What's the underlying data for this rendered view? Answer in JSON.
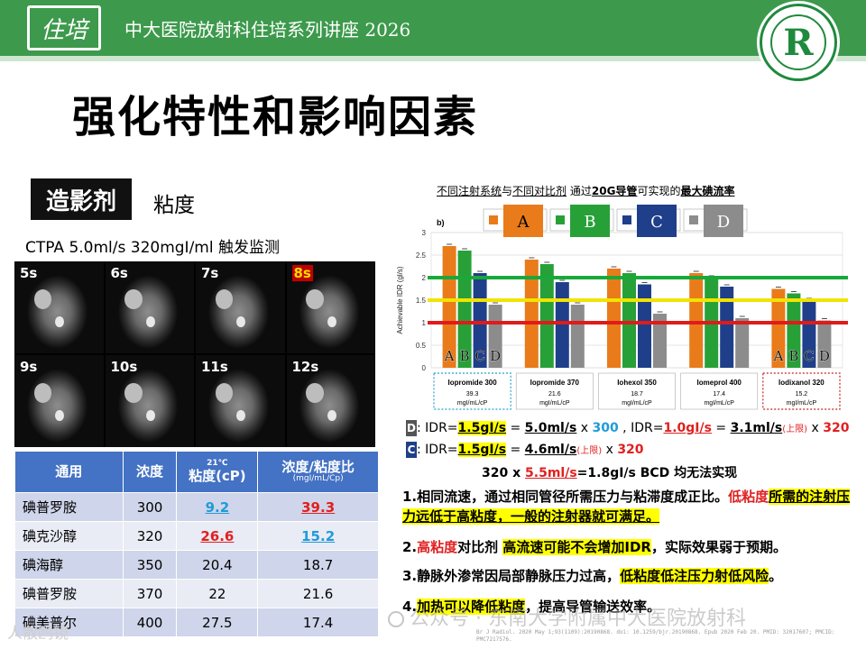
{
  "header": {
    "logo_text": "住培",
    "title": "中大医院放射科住培系列讲座  2026",
    "badge_letter": "R"
  },
  "page_title": "强化特性和影响因素",
  "section": {
    "tag": "造影剂",
    "subtitle": "粘度"
  },
  "ctpa_line": "CTPA  5.0ml/s  320mgI/ml  触发监测",
  "ct_frames": [
    "5s",
    "6s",
    "7s",
    "8s",
    "9s",
    "10s",
    "11s",
    "12s"
  ],
  "table": {
    "headers": {
      "name": "通用",
      "conc": "浓度",
      "visc_temp": "21℃",
      "visc": "粘度(cP)",
      "ratio": "浓度/粘度比",
      "ratio_unit": "(mgI/mL/Cp)"
    },
    "rows": [
      {
        "name": "碘普罗胺",
        "conc": "300",
        "visc": "9.2",
        "ratio": "39.3"
      },
      {
        "name": "碘克沙醇",
        "conc": "320",
        "visc": "26.6",
        "ratio": "15.2"
      },
      {
        "name": "碘海醇",
        "conc": "350",
        "visc": "20.4",
        "ratio": "18.7"
      },
      {
        "name": "碘普罗胺",
        "conc": "370",
        "visc": "22",
        "ratio": "21.6"
      },
      {
        "name": "碘美普尔",
        "conc": "400",
        "visc": "27.5",
        "ratio": "17.4"
      }
    ]
  },
  "chart_title": {
    "p1": "不同注射系统",
    "p2": "与",
    "p3": "不同对比剂",
    "p4": "  通过",
    "p5": "20G导管",
    "p6": "可实现的",
    "p7": "最大碘流率"
  },
  "chart_data": {
    "type": "bar",
    "panel_label": "b)",
    "ylabel": "Achievable IDR (gl/s)",
    "ylim": [
      0,
      3
    ],
    "yticks": [
      "0",
      "0.5",
      "1",
      "1.5",
      "2",
      "2.5",
      "3"
    ],
    "categories": [
      "Iopromide 300",
      "Iopromide 370",
      "Iohexol 350",
      "Iomeprol 400",
      "Iodixanol 320"
    ],
    "category_sublabels": [
      "39.3",
      "21.6",
      "18.7",
      "17.4",
      "15.2"
    ],
    "category_unit": "mgI/mL/cP",
    "series": [
      {
        "name": "A",
        "color": "#e97b1a",
        "values": [
          2.7,
          2.4,
          2.2,
          2.1,
          1.75
        ]
      },
      {
        "name": "B",
        "color": "#27a038",
        "values": [
          2.6,
          2.3,
          2.1,
          2.0,
          1.65
        ]
      },
      {
        "name": "C",
        "color": "#1f3f8a",
        "values": [
          2.1,
          1.9,
          1.85,
          1.8,
          1.5
        ]
      },
      {
        "name": "D",
        "color": "#8c8c8c",
        "values": [
          1.4,
          1.4,
          1.2,
          1.1,
          1.05
        ]
      }
    ],
    "reference_lines": [
      {
        "value": 2.0,
        "color": "#18a93a"
      },
      {
        "value": 1.5,
        "color": "#f2e300"
      },
      {
        "value": 1.0,
        "color": "#e01b1b"
      }
    ],
    "group_bar_labels": [
      "A",
      "B",
      "C",
      "D"
    ]
  },
  "formula": {
    "l1_chip": "D",
    "l1_a": ": IDR=",
    "l1_b": "1.5gI/s",
    "l1_c": " = ",
    "l1_d": "5.0ml/s",
    "l1_e": " x ",
    "l1_f": "300",
    "l1_g": " , IDR=",
    "l1_h": "1.0gI/s",
    "l1_i": " = ",
    "l1_j": "3.1ml/s",
    "l1_k": "(上限)",
    "l1_l": " x ",
    "l1_m": "320",
    "l2_chip": "C",
    "l2_a": ": IDR=",
    "l2_b": "1.5gI/s",
    "l2_c": " = ",
    "l2_d": "4.6ml/s",
    "l2_e": "(上限)",
    "l2_f": " x ",
    "l2_g": "320",
    "l3_a": "320 x  ",
    "l3_b": "5.5ml/s",
    "l3_c": "=1.8gI/s  BCD 均无法实现"
  },
  "notes": {
    "n1_a": "1.相同流速，通过相同管径所需压力与粘滞度成正比。",
    "n1_b": "低粘度",
    "n1_c": "所需的注射压力远低于高粘度，一般的注射器就可满足。",
    "n2_a": "2.",
    "n2_b": "高粘度",
    "n2_c": "对比剂 ",
    "n2_d": "高流速可能不会增加IDR",
    "n2_e": "，实际效果弱于预期。",
    "n3_a": "3.静脉外渗常因局部静脉压力过高，",
    "n3_b": "低粘度低注压力射低风险",
    "n3_c": "。",
    "n4_a": "4.",
    "n4_b": "加热可以降低粘度",
    "n4_c": "，提高导管输送效率。"
  },
  "watermarks": {
    "left": "人散鸥镜",
    "right": "公众号 · 东南大学附属中大医院放射科"
  },
  "footer_ref": "Br J Radiol. 2020 May 1;93(1109):20190868. doi: 10.1259/bjr.20190868. Epub 2020 Feb 20. PMID: 32017607; PMCID: PMC7217576."
}
